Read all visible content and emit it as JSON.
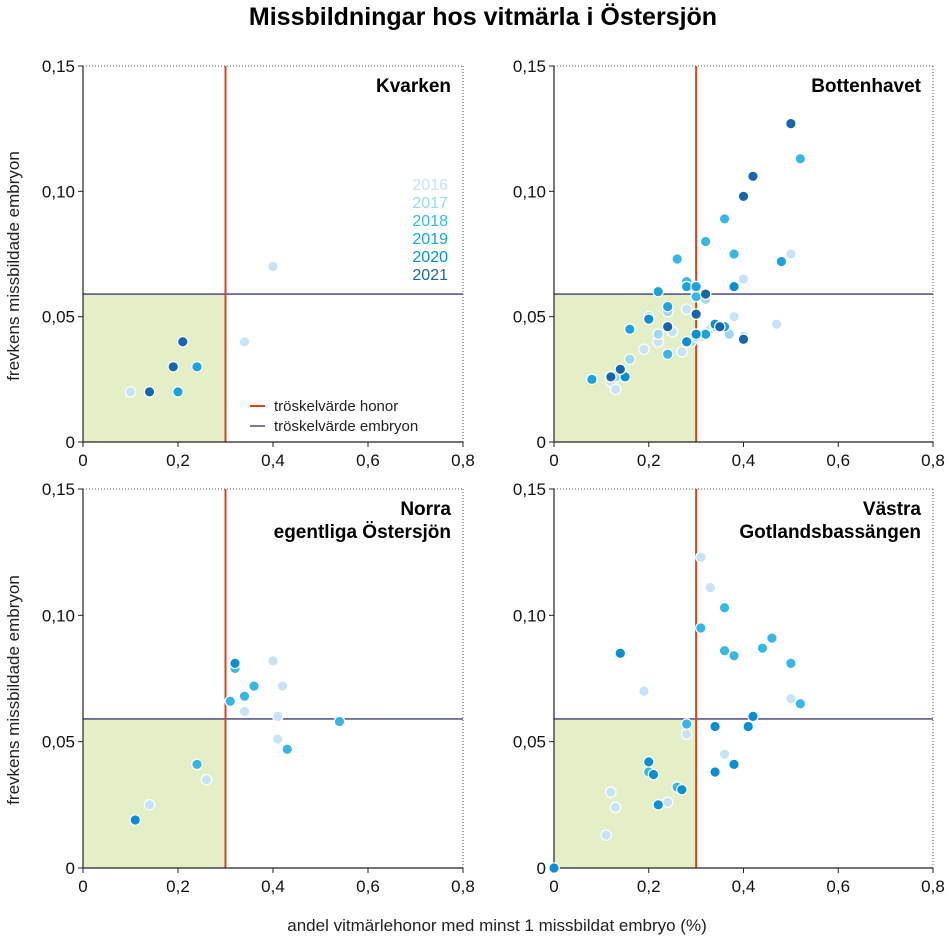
{
  "title": "Missbildningar hos vitmärla i Östersjön",
  "xlabel": "andel vitmärlehonor med minst 1 missbildat embryo (%)",
  "ylabel": "frevkens missbildade embryon",
  "xticks": [
    "0",
    "0,2",
    "0,4",
    "0,6",
    "0,8"
  ],
  "yticks": [
    "0",
    "0,05",
    "0,10",
    "0,15"
  ],
  "legend": {
    "honor": "tröskelvärde honor",
    "embryon": "tröskelvärde embryon"
  },
  "colors": {
    "threshold_honor": "#e2401a",
    "threshold_embryon": "#3c3f78",
    "safe_zone": "#e4efc8",
    "years": {
      "2016": "#c6e3f7",
      "2017": "#9fd6f1",
      "2018": "#38b7e6",
      "2019": "#1aa3df",
      "2020": "#0a8fd2",
      "2021": "#1567ad"
    }
  },
  "chart_data": [
    {
      "type": "scatter",
      "title": [
        "Kvarken"
      ],
      "xlim": [
        0,
        0.8
      ],
      "ylim": [
        0,
        0.15
      ],
      "threshold_x": 0.3,
      "threshold_y": 0.059,
      "grid": false,
      "year_legend": [
        "2016",
        "2017",
        "2018",
        "2019",
        "2020",
        "2021"
      ],
      "line_legend": true,
      "series": [
        {
          "name": "2016",
          "x": [
            0.1,
            0.34,
            0.4
          ],
          "y": [
            0.02,
            0.04,
            0.07
          ]
        },
        {
          "name": "2019",
          "x": [
            0.2,
            0.24
          ],
          "y": [
            0.02,
            0.03
          ]
        },
        {
          "name": "2021",
          "x": [
            0.14,
            0.19,
            0.21
          ],
          "y": [
            0.02,
            0.03,
            0.04
          ]
        }
      ]
    },
    {
      "type": "scatter",
      "title": [
        "Bottenhavet"
      ],
      "xlim": [
        0,
        0.8
      ],
      "ylim": [
        0,
        0.15
      ],
      "threshold_x": 0.3,
      "threshold_y": 0.059,
      "grid": false,
      "series": [
        {
          "name": "2016",
          "x": [
            0.12,
            0.13,
            0.19,
            0.22,
            0.25,
            0.27,
            0.28,
            0.31,
            0.38,
            0.47,
            0.5,
            0.4,
            0.33
          ],
          "y": [
            0.024,
            0.021,
            0.037,
            0.04,
            0.044,
            0.036,
            0.053,
            0.042,
            0.05,
            0.047,
            0.075,
            0.065,
            0.045
          ]
        },
        {
          "name": "2017",
          "x": [
            0.13,
            0.16,
            0.2,
            0.22,
            0.24,
            0.29,
            0.3,
            0.32,
            0.34,
            0.37,
            0.4
          ],
          "y": [
            0.026,
            0.033,
            0.05,
            0.043,
            0.052,
            0.04,
            0.042,
            0.057,
            0.046,
            0.043,
            0.042
          ]
        },
        {
          "name": "2018",
          "x": [
            0.24,
            0.26,
            0.28,
            0.3,
            0.32,
            0.36,
            0.38,
            0.52
          ],
          "y": [
            0.035,
            0.073,
            0.064,
            0.058,
            0.08,
            0.089,
            0.075,
            0.113
          ]
        },
        {
          "name": "2019",
          "x": [
            0.08,
            0.16,
            0.22,
            0.24,
            0.28,
            0.3,
            0.32,
            0.36,
            0.48
          ],
          "y": [
            0.025,
            0.045,
            0.06,
            0.054,
            0.062,
            0.062,
            0.043,
            0.046,
            0.072
          ]
        },
        {
          "name": "2020",
          "x": [
            0.15,
            0.2,
            0.28,
            0.3,
            0.34,
            0.38
          ],
          "y": [
            0.026,
            0.049,
            0.04,
            0.043,
            0.047,
            0.062
          ]
        },
        {
          "name": "2021",
          "x": [
            0.12,
            0.14,
            0.24,
            0.3,
            0.32,
            0.35,
            0.4,
            0.42,
            0.5,
            0.4
          ],
          "y": [
            0.026,
            0.029,
            0.046,
            0.051,
            0.059,
            0.046,
            0.098,
            0.106,
            0.127,
            0.041
          ]
        }
      ]
    },
    {
      "type": "scatter",
      "title": [
        "Norra",
        "egentliga Östersjön"
      ],
      "xlim": [
        0,
        0.8
      ],
      "ylim": [
        0,
        0.15
      ],
      "threshold_x": 0.3,
      "threshold_y": 0.059,
      "grid": false,
      "series": [
        {
          "name": "2016",
          "x": [
            0.14,
            0.26,
            0.34,
            0.4,
            0.41,
            0.42,
            0.41
          ],
          "y": [
            0.025,
            0.035,
            0.062,
            0.082,
            0.06,
            0.072,
            0.051
          ]
        },
        {
          "name": "2018",
          "x": [
            0.24,
            0.31,
            0.32,
            0.34,
            0.36,
            0.43,
            0.54
          ],
          "y": [
            0.041,
            0.066,
            0.079,
            0.068,
            0.072,
            0.047,
            0.058
          ]
        },
        {
          "name": "2020",
          "x": [
            0.11,
            0.32
          ],
          "y": [
            0.019,
            0.081
          ]
        }
      ]
    },
    {
      "type": "scatter",
      "title": [
        "Västra",
        "Gotlandsbassängen"
      ],
      "xlim": [
        0,
        0.8
      ],
      "ylim": [
        0,
        0.15
      ],
      "threshold_x": 0.3,
      "threshold_y": 0.059,
      "grid": false,
      "series": [
        {
          "name": "2016",
          "x": [
            0.11,
            0.12,
            0.13,
            0.19,
            0.24,
            0.28,
            0.31,
            0.33,
            0.36,
            0.5
          ],
          "y": [
            0.013,
            0.03,
            0.024,
            0.07,
            0.026,
            0.053,
            0.123,
            0.111,
            0.045,
            0.067
          ]
        },
        {
          "name": "2018",
          "x": [
            0.2,
            0.26,
            0.28,
            0.31,
            0.36,
            0.38,
            0.44,
            0.46,
            0.5,
            0.52,
            0.36
          ],
          "y": [
            0.038,
            0.032,
            0.057,
            0.095,
            0.086,
            0.084,
            0.087,
            0.091,
            0.081,
            0.065,
            0.103
          ]
        },
        {
          "name": "2020",
          "x": [
            0.0,
            0.14,
            0.2,
            0.21,
            0.22,
            0.27,
            0.34,
            0.34,
            0.38,
            0.41,
            0.42
          ],
          "y": [
            0.0,
            0.085,
            0.042,
            0.037,
            0.025,
            0.031,
            0.038,
            0.056,
            0.041,
            0.056,
            0.06
          ]
        }
      ]
    }
  ]
}
